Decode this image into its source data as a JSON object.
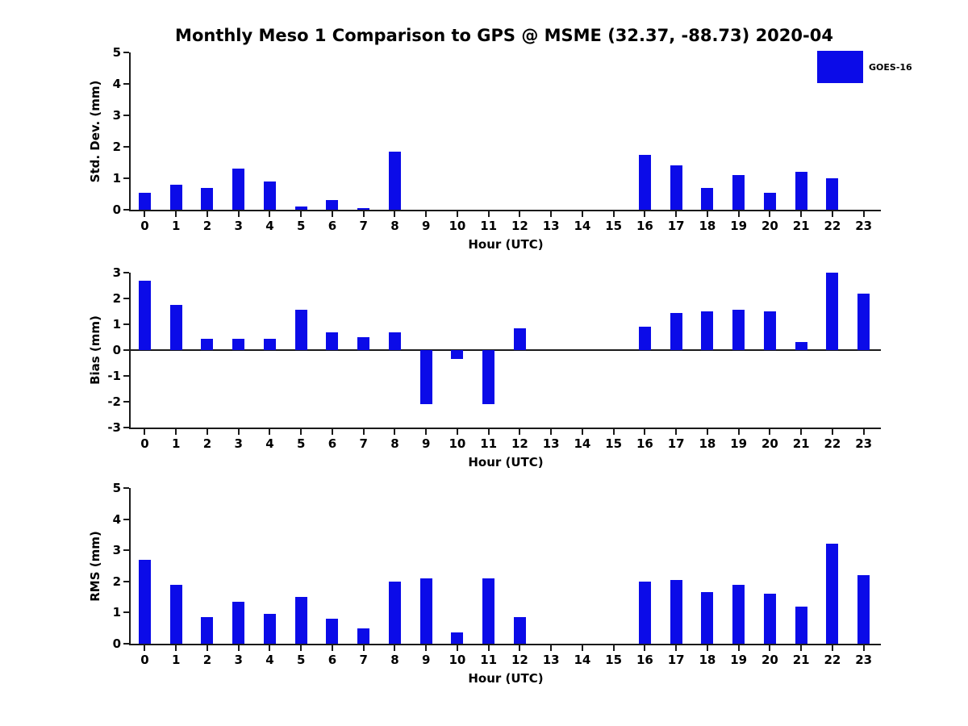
{
  "title": "Monthly Meso 1 Comparison to GPS @ MSME (32.37, -88.73) 2020-04",
  "legend": {
    "label": "GOES-16",
    "color": "#0b0be8"
  },
  "chart_data": [
    {
      "type": "bar",
      "series_name": "GOES-16",
      "ylabel": "Std. Dev. (mm)",
      "xlabel": "Hour (UTC)",
      "categories": [
        0,
        1,
        2,
        3,
        4,
        5,
        6,
        7,
        8,
        9,
        10,
        11,
        12,
        13,
        14,
        15,
        16,
        17,
        18,
        19,
        20,
        21,
        22,
        23
      ],
      "values": [
        0.55,
        0.8,
        0.7,
        1.3,
        0.9,
        0.1,
        0.3,
        0.05,
        1.85,
        0,
        0,
        0,
        0,
        0,
        0,
        0,
        1.75,
        1.4,
        0.7,
        1.1,
        0.55,
        1.2,
        1.0,
        0
      ],
      "ylim": [
        0,
        5
      ],
      "yticks": [
        0,
        1,
        2,
        3,
        4,
        5
      ],
      "grid": false,
      "legend_position": "top-right"
    },
    {
      "type": "bar",
      "series_name": "GOES-16",
      "ylabel": "Bias (mm)",
      "xlabel": "Hour (UTC)",
      "categories": [
        0,
        1,
        2,
        3,
        4,
        5,
        6,
        7,
        8,
        9,
        10,
        11,
        12,
        13,
        14,
        15,
        16,
        17,
        18,
        19,
        20,
        21,
        22,
        23
      ],
      "values": [
        2.7,
        1.75,
        0.45,
        0.45,
        0.45,
        1.55,
        0.7,
        0.5,
        0.7,
        -2.1,
        -0.35,
        -2.1,
        0.85,
        0,
        0,
        0,
        0.9,
        1.45,
        1.5,
        1.55,
        1.5,
        0.3,
        3.0,
        2.2
      ],
      "ylim": [
        -3,
        3
      ],
      "yticks": [
        -3,
        -2,
        -1,
        0,
        1,
        2,
        3
      ],
      "grid": false
    },
    {
      "type": "bar",
      "series_name": "GOES-16",
      "ylabel": "RMS (mm)",
      "xlabel": "Hour (UTC)",
      "categories": [
        0,
        1,
        2,
        3,
        4,
        5,
        6,
        7,
        8,
        9,
        10,
        11,
        12,
        13,
        14,
        15,
        16,
        17,
        18,
        19,
        20,
        21,
        22,
        23
      ],
      "values": [
        2.7,
        1.9,
        0.85,
        1.35,
        0.95,
        1.5,
        0.8,
        0.5,
        2.0,
        2.1,
        0.35,
        2.1,
        0.85,
        0,
        0,
        0,
        2.0,
        2.05,
        1.65,
        1.9,
        1.6,
        1.2,
        3.2,
        2.2
      ],
      "ylim": [
        0,
        5
      ],
      "yticks": [
        0,
        1,
        2,
        3,
        4,
        5
      ],
      "grid": false
    }
  ]
}
